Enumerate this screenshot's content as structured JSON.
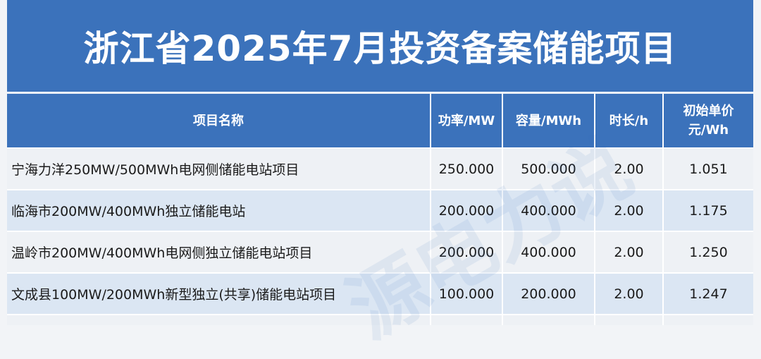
{
  "title": "浙江省2025年7月投资备案储能项目",
  "watermark": "源电力说",
  "headers": {
    "name": "项目名称",
    "power": "功率/MW",
    "capacity": "容量/MWh",
    "duration": "时长/h",
    "price_line1": "初始单价",
    "price_line2": "元/Wh"
  },
  "rows": [
    {
      "name": "宁海力洋250MW/500MWh电网侧储能电站项目",
      "power": "250.000",
      "capacity": "500.000",
      "duration": "2.00",
      "price": "1.051"
    },
    {
      "name": "临海市200MW/400MWh独立储能电站",
      "power": "200.000",
      "capacity": "400.000",
      "duration": "2.00",
      "price": "1.175"
    },
    {
      "name": "温岭市200MW/400MWh电网侧独立储能电站项目",
      "power": "200.000",
      "capacity": "400.000",
      "duration": "2.00",
      "price": "1.250"
    },
    {
      "name": "文成县100MW/200MWh新型独立(共享)储能电站项目",
      "power": "100.000",
      "capacity": "200.000",
      "duration": "2.00",
      "price": "1.247"
    }
  ],
  "colors": {
    "header_blue": "#3b72bb",
    "row_light": "#eef1f5",
    "row_blue": "#dbe6f3"
  }
}
